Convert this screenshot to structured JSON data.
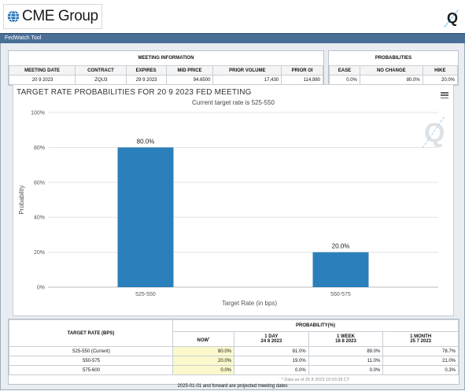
{
  "header": {
    "logo_text": "CME Group",
    "q_logo": "Q"
  },
  "toolbar": {
    "title": "FedWatch Tool"
  },
  "meeting_info": {
    "title": "MEETING INFORMATION",
    "columns": [
      "MEETING DATE",
      "CONTRACT",
      "EXPIRES",
      "MID PRICE",
      "PRIOR VOLUME",
      "PRIOR OI"
    ],
    "values": [
      "20 9 2023",
      "ZQU3",
      "29 9 2023",
      "94.6500",
      "17,430",
      "114,980"
    ]
  },
  "probabilities": {
    "title": "PROBABILITIES",
    "columns": [
      "EASE",
      "NO CHANGE",
      "HIKE"
    ],
    "values": [
      "0.0%",
      "80.0%",
      "20.0%"
    ]
  },
  "chart": {
    "title": "TARGET RATE PROBABILITIES FOR 20 9 2023 FED MEETING",
    "subtitle": "Current target rate is 525-550",
    "watermark": "Q"
  },
  "chart_data": {
    "type": "bar",
    "title": "TARGET RATE PROBABILITIES FOR 20 9 2023 FED MEETING",
    "subtitle": "Current target rate is 525-550",
    "categories": [
      "525-550",
      "550-575"
    ],
    "values": [
      80.0,
      20.0
    ],
    "data_labels": [
      "80.0%",
      "20.0%"
    ],
    "xlabel": "Target Rate (in bps)",
    "ylabel": "Probability",
    "ylim": [
      0,
      100
    ],
    "yticks": [
      "0%",
      "20%",
      "40%",
      "60%",
      "80%",
      "100%"
    ],
    "grid": true,
    "bar_color": "#2b7fba"
  },
  "bottom_table": {
    "target_rate_header": "TARGET RATE (BPS)",
    "probability_header": "PROBABILITY(%)",
    "columns": [
      {
        "title": "NOW",
        "sup": "*",
        "date": ""
      },
      {
        "title": "1 DAY",
        "date": "24 8 2023"
      },
      {
        "title": "1 WEEK",
        "date": "18 8 2023"
      },
      {
        "title": "1 MONTH",
        "date": "25 7 2023"
      }
    ],
    "rows": [
      {
        "label": "525-550 (Current)",
        "values": [
          "80.0%",
          "81.0%",
          "89.0%",
          "78.7%"
        ]
      },
      {
        "label": "550-575",
        "values": [
          "20.0%",
          "19.0%",
          "11.0%",
          "21.0%"
        ]
      },
      {
        "label": "575-600",
        "values": [
          "0.0%",
          "0.0%",
          "0.0%",
          "0.3%"
        ]
      }
    ],
    "note": "* Data as of 25 8 2023 10:03:39 CT"
  },
  "footer": {
    "text": "2025-01-01 and forward are projected meeting dates"
  }
}
